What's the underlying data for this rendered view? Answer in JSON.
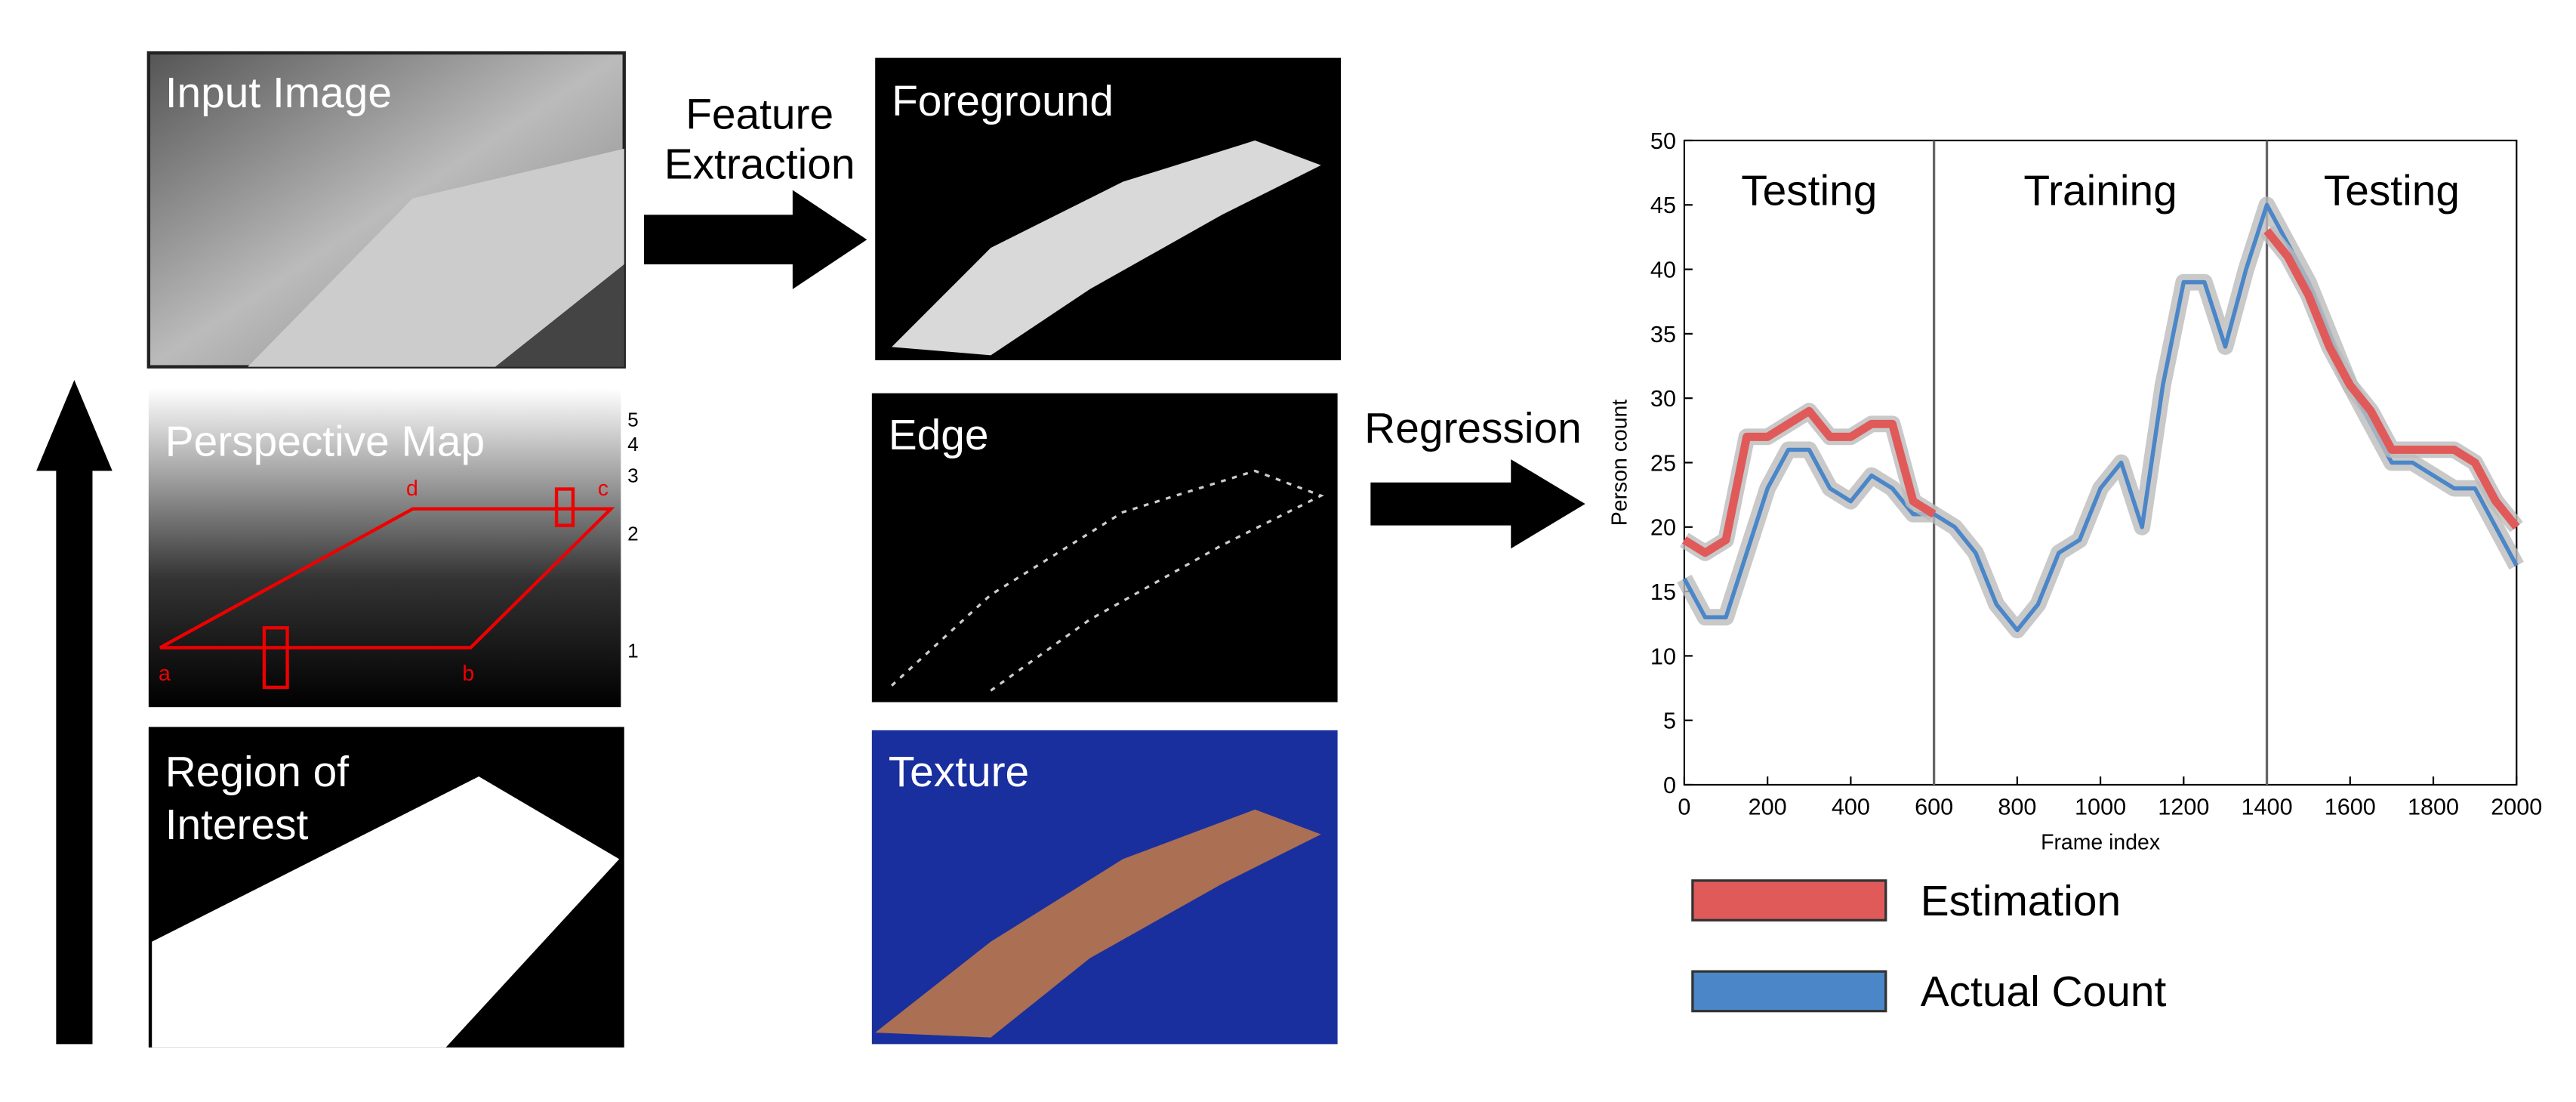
{
  "panels": {
    "input_image": "Input Image",
    "perspective_map": {
      "title": "Perspective Map",
      "scale": [
        "5",
        "4",
        "3",
        "2",
        "1"
      ],
      "points": [
        "a",
        "b",
        "c",
        "d"
      ]
    },
    "region_of_interest": [
      "Region of",
      "Interest"
    ],
    "foreground": "Foreground",
    "edge": "Edge",
    "texture": "Texture"
  },
  "arrows": {
    "feature_extraction": [
      "Feature",
      "Extraction"
    ],
    "regression": "Regression"
  },
  "chart_data": {
    "type": "line",
    "xlabel": "Frame index",
    "ylabel": "Person count",
    "xlim": [
      0,
      2000
    ],
    "ylim": [
      0,
      50
    ],
    "xticks": [
      0,
      200,
      400,
      600,
      800,
      1000,
      1200,
      1400,
      1600,
      1800,
      2000
    ],
    "yticks": [
      0,
      5,
      10,
      15,
      20,
      25,
      30,
      35,
      40,
      45,
      50
    ],
    "x": [
      0,
      50,
      100,
      150,
      200,
      250,
      300,
      350,
      400,
      450,
      500,
      550,
      600,
      650,
      700,
      750,
      800,
      850,
      900,
      950,
      1000,
      1050,
      1100,
      1150,
      1200,
      1250,
      1300,
      1350,
      1400,
      1450,
      1500,
      1550,
      1600,
      1650,
      1700,
      1750,
      1800,
      1850,
      1900,
      1950,
      2000
    ],
    "dividers": [
      600,
      1400
    ],
    "regions": [
      "Testing",
      "Training",
      "Testing"
    ],
    "series": [
      {
        "name": "Estimation",
        "color": "#e05a5a",
        "values": [
          19,
          18,
          19,
          27,
          27,
          28,
          29,
          27,
          27,
          28,
          28,
          22,
          21,
          null,
          null,
          null,
          null,
          null,
          null,
          null,
          null,
          null,
          null,
          null,
          null,
          null,
          null,
          null,
          43,
          41,
          38,
          34,
          31,
          29,
          26,
          26,
          26,
          26,
          25,
          22,
          20
        ]
      },
      {
        "name": "Actual Count",
        "color": "#4a86c8",
        "values": [
          16,
          13,
          13,
          18,
          23,
          26,
          26,
          23,
          22,
          24,
          23,
          21,
          21,
          20,
          18,
          14,
          12,
          14,
          18,
          19,
          23,
          25,
          20,
          31,
          39,
          39,
          34,
          40,
          45,
          42,
          39,
          35,
          31,
          28,
          25,
          25,
          24,
          23,
          23,
          20,
          17
        ]
      }
    ]
  }
}
